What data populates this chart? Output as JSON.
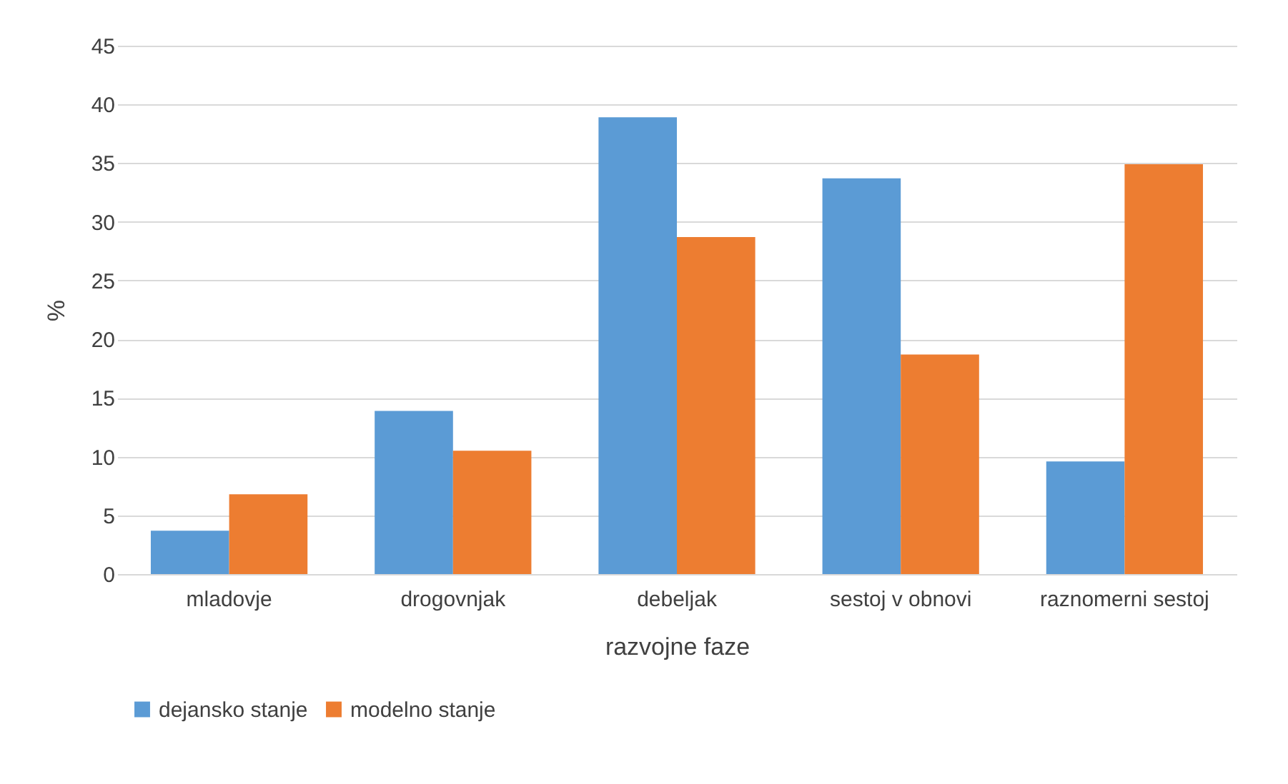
{
  "chart_data": {
    "type": "bar",
    "xlabel": "razvojne faze",
    "ylabel": "%",
    "categories": [
      "mladovje",
      "drogovnjak",
      "debeljak",
      "sestoj v obnovi",
      "raznomerni sestoj"
    ],
    "series": [
      {
        "name": "dejansko stanje",
        "color": "#5b9bd5",
        "values": [
          3.7,
          13.9,
          38.9,
          33.7,
          9.6
        ]
      },
      {
        "name": "modelno stanje",
        "color": "#ed7d31",
        "values": [
          6.8,
          10.5,
          28.7,
          18.7,
          34.9
        ]
      }
    ],
    "ylim": [
      0,
      45
    ],
    "yticks": [
      0,
      5,
      10,
      15,
      20,
      25,
      30,
      35,
      40,
      45
    ],
    "grid": "y",
    "legend": "bottom"
  }
}
